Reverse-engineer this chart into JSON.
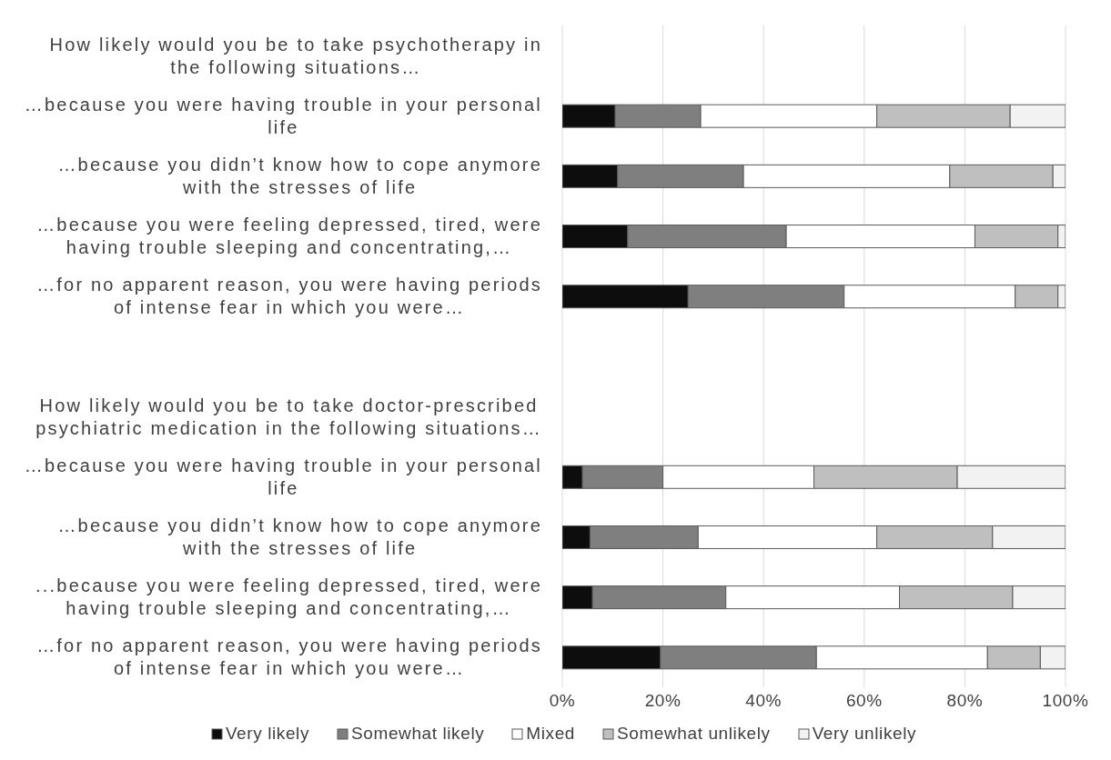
{
  "chart_data": {
    "type": "bar",
    "orientation": "horizontal",
    "stacked": true,
    "categories": [
      "How likely would you be to take psychotherapy in the following situations…",
      "…because you were having trouble in your personal life",
      "…because you didn’t know how to cope anymore with the stresses of life",
      "…because you were feeling depressed, tired, were having trouble sleeping and concentrating,…",
      "…for no apparent reason, you were having periods of intense fear in which you were…",
      null,
      "How likely would you be to take doctor-prescribed psychiatric medication in the following situations…",
      "…because you were having trouble in your personal life",
      "…because you didn’t know how to cope anymore with the stresses of life",
      "...because you were feeling depressed, tired, were having trouble sleeping and concentrating,…",
      "…for no apparent reason, you were having periods of intense fear in which you were…"
    ],
    "series": [
      {
        "name": "Very likely",
        "color": "#0d0d0d",
        "values": [
          null,
          10.5,
          11,
          13,
          25,
          null,
          null,
          4,
          5.5,
          6,
          19.5
        ]
      },
      {
        "name": "Somewhat likely",
        "color": "#7f7f7f",
        "values": [
          null,
          17,
          25,
          31.5,
          31,
          null,
          null,
          16,
          21.5,
          26.5,
          31
        ]
      },
      {
        "name": "Mixed",
        "color": "#ffffff",
        "values": [
          null,
          35,
          41,
          37.5,
          34,
          null,
          null,
          30,
          35.5,
          34.5,
          34
        ]
      },
      {
        "name": "Somewhat unlikely",
        "color": "#bfbfbf",
        "values": [
          null,
          26.5,
          20.5,
          16.5,
          8.5,
          null,
          null,
          28.5,
          23,
          22.5,
          10.5
        ]
      },
      {
        "name": "Very unlikely",
        "color": "#f2f2f2",
        "values": [
          null,
          11,
          2.5,
          1.5,
          1.5,
          null,
          null,
          21.5,
          14.5,
          10.5,
          5
        ]
      }
    ],
    "xlim": [
      0,
      100
    ],
    "xticks": [
      {
        "value": 0,
        "label": "0%"
      },
      {
        "value": 20,
        "label": "20%"
      },
      {
        "value": 40,
        "label": "40%"
      },
      {
        "value": 60,
        "label": "60%"
      },
      {
        "value": 80,
        "label": "80%"
      },
      {
        "value": 100,
        "label": "100%"
      }
    ],
    "grid": "x",
    "legend": "bottom"
  }
}
